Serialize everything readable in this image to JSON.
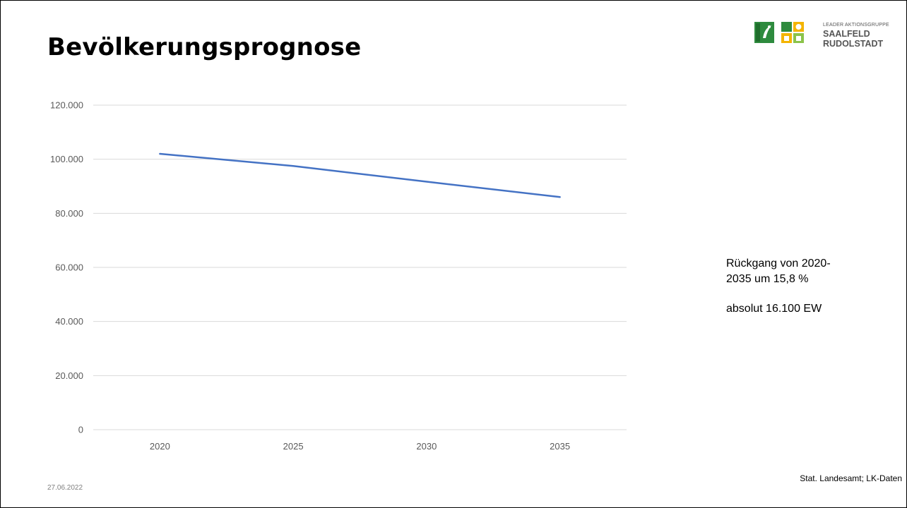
{
  "slide": {
    "title": "Bevölkerungsprognose",
    "logo_line1": "LEADER AKTIONSGRUPPE",
    "logo_line2": "SAALFELD",
    "logo_line3": "RUDOLSTADT",
    "note_line1": "Rückgang von 2020-",
    "note_line2": "2035 um 15,8 %",
    "note_line3": "absolut 16.100 EW",
    "source": "Stat. Landesamt; LK-Daten",
    "date": "27.06.2022"
  },
  "colors": {
    "series": "#4472C4",
    "grid": "#D9D9D9",
    "axis_text": "#595959"
  },
  "chart_data": {
    "type": "line",
    "title": "",
    "xlabel": "",
    "ylabel": "",
    "categories": [
      "2020",
      "2025",
      "2030",
      "2035"
    ],
    "series": [
      {
        "values": [
          102000,
          97500,
          91700,
          86000
        ]
      }
    ],
    "ylim": [
      0,
      120000
    ],
    "yticks": [
      0,
      20000,
      40000,
      60000,
      80000,
      100000,
      120000
    ],
    "ytick_labels": [
      "0",
      "20.000",
      "40.000",
      "60.000",
      "80.000",
      "100.000",
      "120.000"
    ],
    "grid": true,
    "legend": "none"
  }
}
